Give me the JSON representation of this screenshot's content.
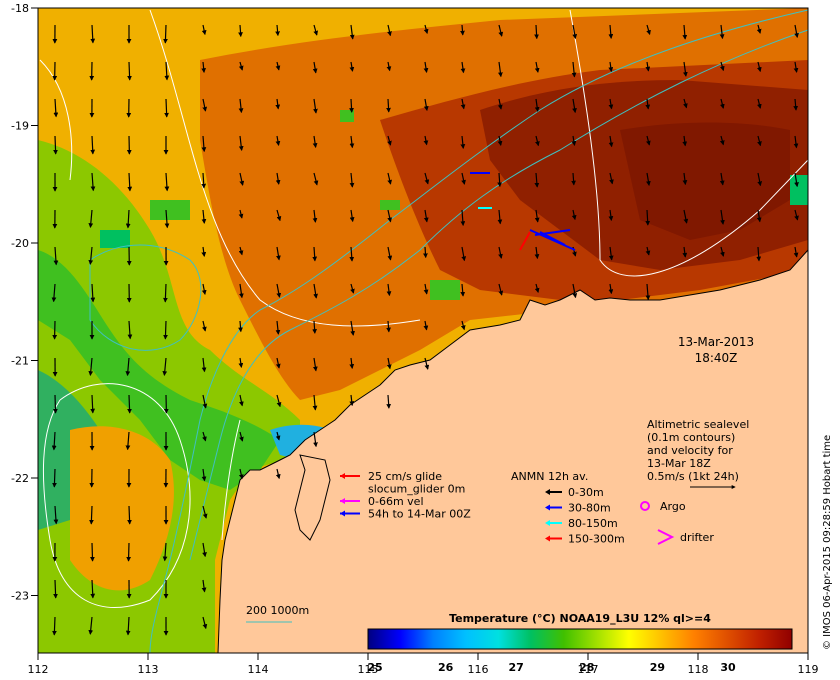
{
  "map": {
    "x_ticks": [
      "112",
      "113",
      "114",
      "115",
      "116",
      "117",
      "118",
      "119"
    ],
    "y_ticks": [
      "-18",
      "-19",
      "-20",
      "-21",
      "-22",
      "-23"
    ],
    "timestamp_date": "13-Mar-2013",
    "timestamp_time": "18:40Z",
    "credit": "© IMOS 06-Apr-2015 09:28:59 Hobart time"
  },
  "legend_glider": {
    "lines": [
      "25 cm/s glide",
      "slocum_glider 0m",
      "0-66m vel",
      "54h to 14-Mar 00Z"
    ],
    "colors": [
      "#ff0000",
      "#ff00ff",
      "#ff00ff",
      "#0000ff"
    ]
  },
  "legend_anmn": {
    "title": "ANMN 12h av.",
    "items": [
      {
        "label": "0-30m",
        "color": "#000000"
      },
      {
        "label": "30-80m",
        "color": "#0000ff"
      },
      {
        "label": "80-150m",
        "color": "#00ffff"
      },
      {
        "label": "150-300m",
        "color": "#ff0000"
      }
    ]
  },
  "legend_altimetry": {
    "lines": [
      "Altimetric sealevel",
      "(0.1m contours)",
      "and velocity for",
      "13-Mar 18Z",
      "0.5m/s (1kt 24h)"
    ]
  },
  "legend_markers": {
    "argo": "Argo",
    "drifter": "drifter"
  },
  "contour_legend": {
    "label": "200  1000m",
    "color": "#40c0c0"
  },
  "colorbar": {
    "title": "Temperature (°C) NOAA19_L3U 12% ql>=4",
    "ticks": [
      "25",
      "26",
      "27",
      "28",
      "29",
      "30"
    ],
    "colors": [
      "#000080",
      "#0000ff",
      "#0080ff",
      "#00c0ff",
      "#00e0e0",
      "#00c060",
      "#40c000",
      "#a0e000",
      "#ffff00",
      "#ffc000",
      "#ff8000",
      "#e05000",
      "#c02000",
      "#900000"
    ]
  }
}
